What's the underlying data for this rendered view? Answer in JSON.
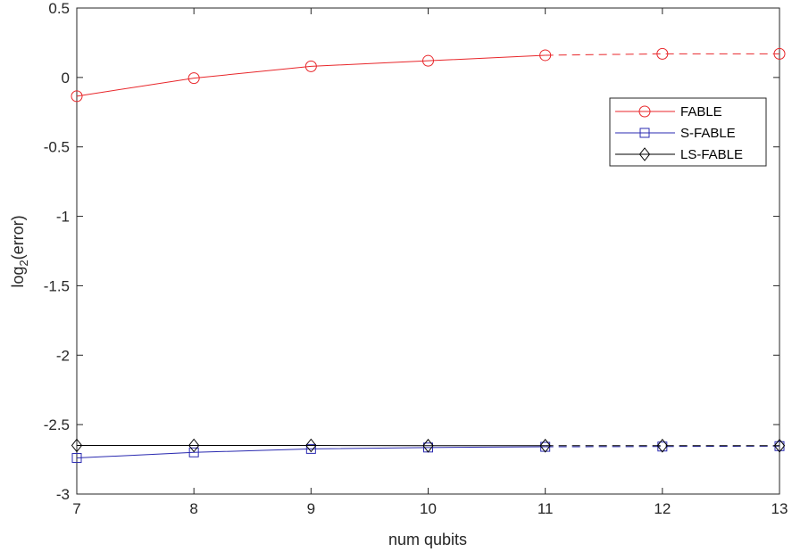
{
  "chart_data": {
    "type": "line",
    "title": "",
    "xlabel": "num qubits",
    "ylabel_main": "log",
    "ylabel_sub": "2",
    "ylabel_rest": "(error)",
    "xlim": [
      7,
      13
    ],
    "ylim": [
      -3,
      0.5
    ],
    "x_ticks": [
      7,
      8,
      9,
      10,
      11,
      12,
      13
    ],
    "y_ticks": [
      0.5,
      0,
      -0.5,
      -1,
      -1.5,
      -2,
      -2.5,
      -3
    ],
    "grid": false,
    "legend_position": "top-right",
    "x": [
      7,
      8,
      9,
      10,
      11,
      12,
      13
    ],
    "solid_until": 11,
    "series": [
      {
        "name": "FABLE",
        "color": "#e8262a",
        "marker": "circle",
        "values": [
          -0.135,
          -0.005,
          0.08,
          0.12,
          0.16,
          0.17,
          0.17
        ]
      },
      {
        "name": "S-FABLE",
        "color": "#2a2ab0",
        "marker": "square",
        "values": [
          -2.74,
          -2.7,
          -2.675,
          -2.665,
          -2.66,
          -2.658,
          -2.655
        ]
      },
      {
        "name": "LS-FABLE",
        "color": "#000000",
        "marker": "diamond",
        "values": [
          -2.65,
          -2.65,
          -2.65,
          -2.652,
          -2.652,
          -2.652,
          -2.652
        ]
      }
    ]
  }
}
